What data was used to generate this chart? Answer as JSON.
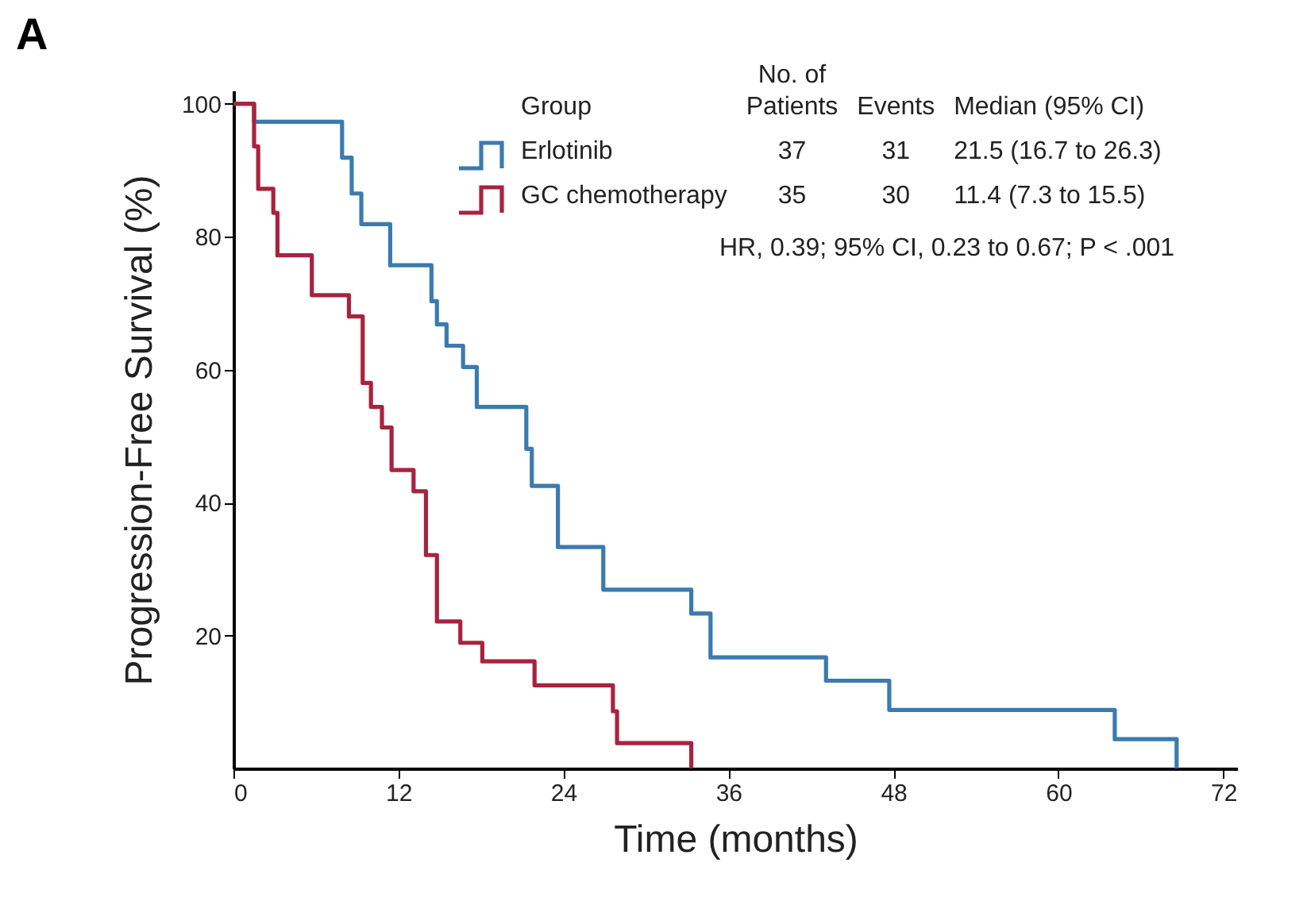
{
  "chart_data": {
    "type": "step",
    "xlabel": "Time (months)",
    "ylabel": "Progression-Free Survival (%)",
    "xlim": [
      0,
      73
    ],
    "xticks": [
      0,
      12,
      24,
      36,
      48,
      60,
      72
    ],
    "ylim": [
      0,
      102
    ],
    "yticks": [
      20,
      40,
      60,
      80,
      100
    ],
    "grid": false,
    "legend": "top",
    "marker": "none",
    "line_style": "solid",
    "series": [
      {
        "name": "Erlotinib",
        "color": "#3a7bb0",
        "x": [
          0,
          1.5,
          7.9,
          8.6,
          9.3,
          11.4,
          14.4,
          14.8,
          15.5,
          16.7,
          17.7,
          21.3,
          21.7,
          23.6,
          26.9,
          33.3,
          34.7,
          43.1,
          47.7,
          64.1,
          68.6
        ],
        "values": [
          100,
          97.3,
          91.9,
          86.5,
          81.9,
          75.7,
          70.3,
          66.8,
          63.6,
          60.4,
          54.4,
          48.1,
          42.5,
          33.3,
          26.9,
          23.3,
          16.7,
          13.2,
          8.8,
          4.4,
          0
        ]
      },
      {
        "name": "GC chemotherapy",
        "color": "#a8233f",
        "x": [
          0,
          1.5,
          1.8,
          2.9,
          3.2,
          5.7,
          8.4,
          9.4,
          10.0,
          10.8,
          11.5,
          13.1,
          14.0,
          14.8,
          16.5,
          18.1,
          21.9,
          27.6,
          27.9,
          33.3
        ],
        "values": [
          100,
          93.6,
          87.2,
          83.6,
          77.2,
          71.2,
          68.0,
          58.0,
          54.4,
          51.3,
          44.9,
          41.7,
          32.1,
          22.1,
          18.9,
          16.1,
          12.5,
          8.6,
          3.8,
          0
        ]
      }
    ],
    "annotations": [
      "A",
      "Group",
      "No. of\nPatients",
      "Events",
      "Median (95% CI)",
      "37",
      "31",
      "21.5 (16.7 to 26.3)",
      "35",
      "30",
      "11.4 (7.3 to 15.5)",
      "HR, 0.39; 95% CI, 0.23 to 0.67; P < .001"
    ]
  }
}
